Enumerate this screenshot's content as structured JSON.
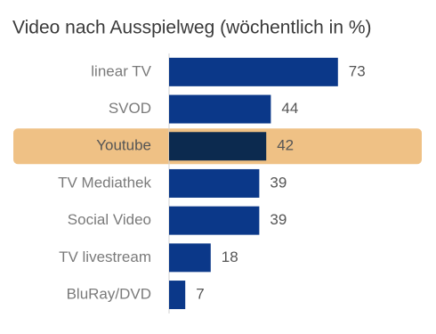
{
  "chart_data": {
    "type": "barh",
    "title": "Video nach Ausspielweg  (wöchentlich in %)",
    "categories": [
      "linear TV",
      "SVOD",
      "Youtube",
      "TV Mediathek",
      "Social Video",
      "TV livestream",
      "BluRay/DVD"
    ],
    "values": [
      73,
      44,
      42,
      39,
      39,
      18,
      7
    ],
    "color": "#0b3889",
    "highlight": 2,
    "highlight_color": "#0c2a4f",
    "highlight_band_color": "#efc185"
  }
}
